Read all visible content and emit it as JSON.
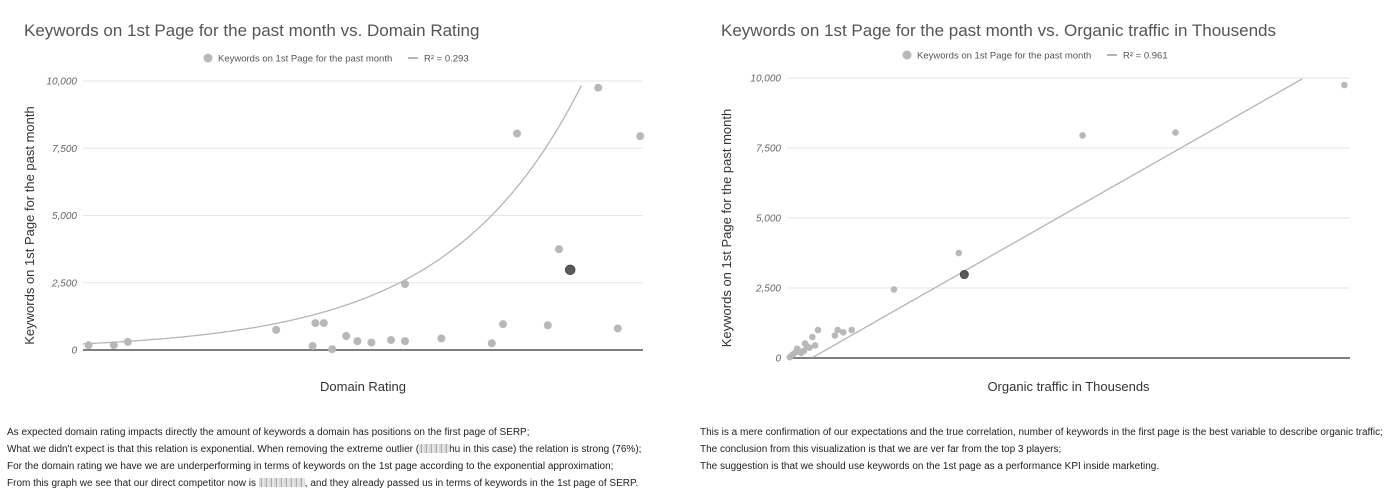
{
  "chart_data": [
    {
      "type": "scatter",
      "title": "Keywords on 1st Page for the past month vs. Domain Rating",
      "xlabel": "Domain Rating",
      "ylabel": "Keywords on 1st Page for the past month",
      "x_ticks": [],
      "y_ticks": [
        "0",
        "2,500",
        "5,000",
        "7,500",
        "10,000"
      ],
      "xlim": [
        0,
        100
      ],
      "ylim": [
        0,
        10000
      ],
      "grid": true,
      "legend_position": "top",
      "legend": {
        "series": "Keywords on 1st Page for the past month",
        "trendline": "R² = 0.293"
      },
      "trendline": {
        "kind": "exponential",
        "a": 230,
        "b": 0.0422
      },
      "series": [
        {
          "name": "Keywords on 1st Page for the past month",
          "points": [
            {
              "x": 1,
              "y": 180
            },
            {
              "x": 5.5,
              "y": 180
            },
            {
              "x": 8,
              "y": 300
            },
            {
              "x": 34.5,
              "y": 750
            },
            {
              "x": 41,
              "y": 150
            },
            {
              "x": 41.5,
              "y": 1000
            },
            {
              "x": 43,
              "y": 1000
            },
            {
              "x": 44.5,
              "y": 30
            },
            {
              "x": 47,
              "y": 520
            },
            {
              "x": 49,
              "y": 330
            },
            {
              "x": 51.5,
              "y": 280
            },
            {
              "x": 55,
              "y": 370
            },
            {
              "x": 57.5,
              "y": 2450
            },
            {
              "x": 57.5,
              "y": 330
            },
            {
              "x": 64,
              "y": 430
            },
            {
              "x": 73,
              "y": 250
            },
            {
              "x": 75,
              "y": 960
            },
            {
              "x": 77.5,
              "y": 8050
            },
            {
              "x": 83,
              "y": 920
            },
            {
              "x": 85,
              "y": 3750
            },
            {
              "x": 92,
              "y": 9750
            },
            {
              "x": 95.5,
              "y": 800
            },
            {
              "x": 99.5,
              "y": 7950
            }
          ],
          "highlight": {
            "x": 87,
            "y": 2980
          }
        }
      ]
    },
    {
      "type": "scatter",
      "title": "Keywords on 1st Page for the past month vs. Organic traffic in Thousends",
      "xlabel": "Organic traffic in Thousends",
      "ylabel": "Keywords on 1st Page for the past month",
      "x_ticks": [],
      "y_ticks": [
        "0",
        "2,500",
        "5,000",
        "7,500",
        "10,000"
      ],
      "xlim": [
        0,
        100
      ],
      "ylim": [
        0,
        10000
      ],
      "grid": true,
      "legend_position": "top",
      "legend": {
        "series": "Keywords on 1st Page for the past month",
        "trendline": "R² = 0.961"
      },
      "trendline": {
        "kind": "linear",
        "slope": 114.4,
        "intercept": -500
      },
      "series": [
        {
          "name": "Keywords on 1st Page for the past month",
          "points": [
            {
              "x": 0.5,
              "y": 30
            },
            {
              "x": 1,
              "y": 120
            },
            {
              "x": 1.5,
              "y": 200
            },
            {
              "x": 2,
              "y": 280
            },
            {
              "x": 1.8,
              "y": 330
            },
            {
              "x": 2.5,
              "y": 180
            },
            {
              "x": 3,
              "y": 250
            },
            {
              "x": 3.5,
              "y": 430
            },
            {
              "x": 3.2,
              "y": 520
            },
            {
              "x": 4,
              "y": 370
            },
            {
              "x": 4.5,
              "y": 750
            },
            {
              "x": 5,
              "y": 450
            },
            {
              "x": 5.5,
              "y": 1000
            },
            {
              "x": 8.5,
              "y": 800
            },
            {
              "x": 9,
              "y": 1000
            },
            {
              "x": 10,
              "y": 920
            },
            {
              "x": 11.5,
              "y": 1000
            },
            {
              "x": 19,
              "y": 2450
            },
            {
              "x": 30.5,
              "y": 3750
            },
            {
              "x": 52.5,
              "y": 7950
            },
            {
              "x": 69,
              "y": 8050
            },
            {
              "x": 99,
              "y": 9750
            }
          ],
          "highlight": {
            "x": 31.5,
            "y": 2980
          }
        }
      ]
    }
  ],
  "notes_left": {
    "l1": "As expected domain rating impacts directly the amount of keywords a domain has positions on the first page of SERP;",
    "l2a": "What we didn't expect is that this relation is exponential. When removing the extreme outlier (",
    "l2b": "hu in this case) the relation is strong (76%);",
    "l3": "For the domain rating we have we are underperforming in terms of keywords on the 1st page according to the exponential approximation;",
    "l4a": "From this graph we see that our direct competitor now is",
    "l4b": ", and they already passed us in terms of keywords in the 1st page of SERP."
  },
  "notes_right": {
    "l1": "This is a mere confirmation of our expectations and the true correlation, number of keywords in the first page is the best variable to describe organic traffic;",
    "l2": "The conclusion from this visualization is that we are ver far from the top 3 players;",
    "l3": "The suggestion is that we should use keywords on the 1st page as a performance KPI inside marketing."
  },
  "colors": {
    "point": "#b8b8b8",
    "highlight": "#5a5a5a",
    "trendline": "#b5b5b5",
    "grid": "#e6e6e6",
    "axis": "#555555"
  }
}
